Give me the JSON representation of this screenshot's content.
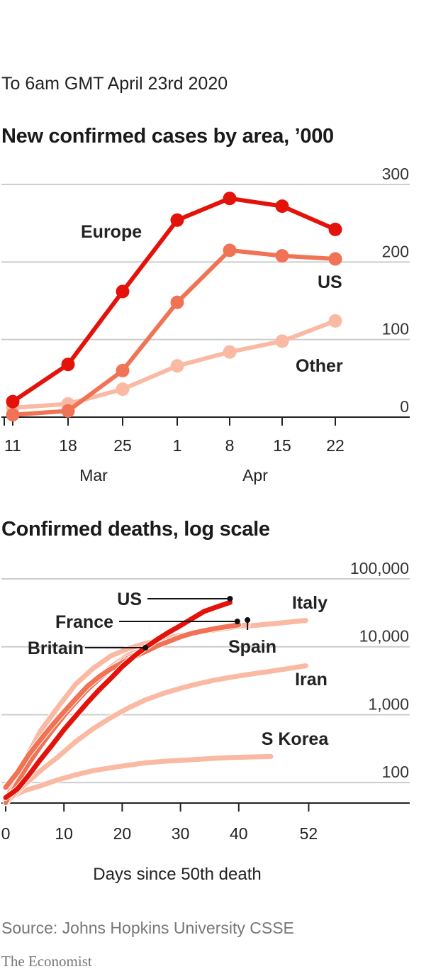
{
  "header": {
    "date": "To 6am GMT April 23rd 2020"
  },
  "footer": {
    "source": "Source: Johns Hopkins University CSSE",
    "brand": "The Economist"
  },
  "colors": {
    "europe": "#e3120b",
    "us_cases": "#f07355",
    "other": "#f9b9a3",
    "us_deaths": "#e3120b",
    "france": "#f07355",
    "italy": "#f9b9a3",
    "axis": "#222222",
    "grid": "#cccccc"
  },
  "chart_data": [
    {
      "type": "line",
      "title": "New confirmed cases by area, ’000",
      "x": [
        11,
        18,
        25,
        1,
        8,
        15,
        22
      ],
      "x_month_labels": [
        "Mar",
        "Apr"
      ],
      "yticks": [
        0,
        100,
        200,
        300
      ],
      "ylim": [
        0,
        300
      ],
      "series": [
        {
          "name": "Europe",
          "values": [
            20,
            68,
            162,
            254,
            282,
            272,
            242
          ]
        },
        {
          "name": "US",
          "values": [
            3,
            8,
            60,
            148,
            215,
            208,
            204
          ]
        },
        {
          "name": "Other",
          "values": [
            12,
            17,
            36,
            66,
            84,
            98,
            124
          ]
        }
      ]
    },
    {
      "type": "line",
      "title": "Confirmed deaths, log scale",
      "xlabel": "Days since 50th death",
      "xticks": [
        0,
        10,
        20,
        30,
        40,
        52
      ],
      "yscale": "log",
      "yticks": [
        100,
        1000,
        10000,
        100000
      ],
      "ytick_labels": [
        "100",
        "1,000",
        "10,000",
        "100,000"
      ],
      "ylim": [
        50,
        100000
      ],
      "series": [
        {
          "name": "US",
          "x": [
            0,
            2,
            4,
            6,
            8,
            10,
            12,
            14,
            16,
            18,
            20,
            22,
            24,
            26,
            28,
            30,
            32,
            34,
            36,
            38.5
          ],
          "values": [
            60,
            80,
            130,
            220,
            360,
            600,
            950,
            1500,
            2300,
            3400,
            5100,
            7200,
            9800,
            12800,
            16400,
            20500,
            26000,
            33000,
            38000,
            45000
          ]
        },
        {
          "name": "France",
          "x": [
            0,
            2,
            4,
            6,
            8,
            10,
            12,
            14,
            16,
            18,
            20,
            22,
            24,
            26,
            28,
            30,
            32,
            34,
            36,
            38,
            40
          ],
          "values": [
            85,
            140,
            260,
            430,
            700,
            1100,
            1700,
            2600,
            3600,
            4700,
            5800,
            7100,
            8500,
            10300,
            12000,
            14000,
            15800,
            17200,
            18600,
            19800,
            21000
          ]
        },
        {
          "name": "Britain",
          "x": [
            0,
            2,
            4,
            6,
            8,
            10,
            12,
            14,
            16,
            18,
            20,
            22,
            24
          ],
          "values": [
            50,
            100,
            190,
            340,
            580,
            950,
            1500,
            2300,
            3300,
            4600,
            6200,
            7600,
            8900
          ]
        },
        {
          "name": "Italy",
          "x": [
            0,
            3,
            6,
            9,
            12,
            15,
            18,
            21,
            24,
            27,
            30,
            33,
            36,
            39,
            42,
            45,
            48,
            51.5
          ],
          "values": [
            55,
            150,
            370,
            830,
            1700,
            3000,
            5000,
            7500,
            10000,
            12500,
            14800,
            16500,
            18000,
            19300,
            20400,
            21500,
            22800,
            24500
          ]
        },
        {
          "name": "Spain",
          "x": [
            0,
            3,
            6,
            9,
            12,
            15,
            18,
            21,
            24,
            27,
            30,
            33,
            36,
            39,
            41.5
          ],
          "values": [
            55,
            190,
            580,
            1300,
            2800,
            4800,
            7300,
            9400,
            11200,
            13000,
            14700,
            16300,
            17800,
            19400,
            21200
          ]
        },
        {
          "name": "Iran",
          "x": [
            0,
            3,
            6,
            9,
            12,
            15,
            18,
            21,
            24,
            27,
            30,
            33,
            36,
            39,
            42,
            45,
            48,
            51.5
          ],
          "values": [
            50,
            90,
            150,
            240,
            400,
            620,
            900,
            1250,
            1650,
            2050,
            2450,
            2850,
            3250,
            3600,
            3950,
            4300,
            4700,
            5250
          ]
        },
        {
          "name": "S Korea",
          "x": [
            0,
            3,
            6,
            9,
            12,
            15,
            18,
            21,
            24,
            27,
            30,
            33,
            36,
            39,
            42,
            45.5
          ],
          "values": [
            55,
            75,
            90,
            110,
            130,
            150,
            165,
            180,
            195,
            205,
            212,
            220,
            228,
            234,
            238,
            242
          ]
        }
      ]
    }
  ]
}
